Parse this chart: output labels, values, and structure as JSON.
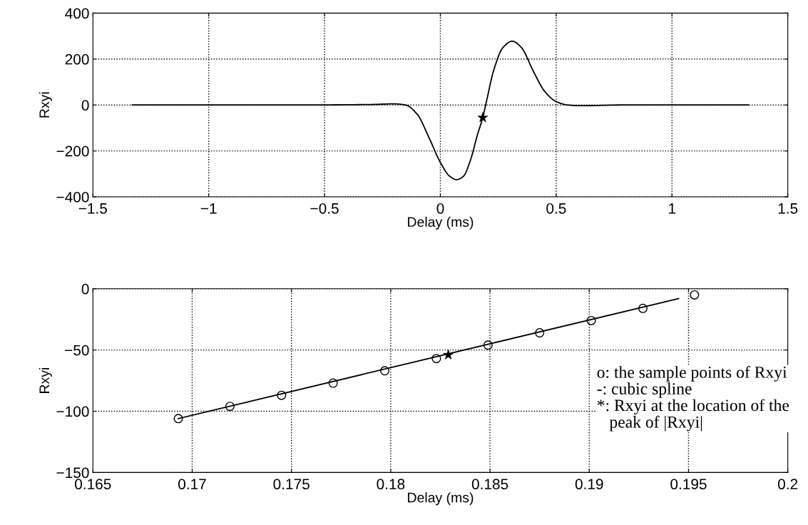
{
  "chart_data": [
    {
      "type": "line",
      "xlabel": "Delay (ms)",
      "ylabel": "Rxyi",
      "xlim": [
        -1.5,
        1.5
      ],
      "ylim": [
        -400,
        400
      ],
      "xticks": [
        -1.5,
        -1,
        -0.5,
        0,
        0.5,
        1,
        1.5
      ],
      "yticks": [
        -400,
        -200,
        0,
        200,
        400
      ],
      "grid": true,
      "series": [
        {
          "color": "#000000",
          "marker": "none",
          "x": [
            -1.33,
            -0.6,
            -0.3,
            -0.2,
            -0.15,
            -0.1,
            -0.05,
            0,
            0.04,
            0.07,
            0.1,
            0.13,
            0.16,
            0.183,
            0.2,
            0.23,
            0.27,
            0.31,
            0.35,
            0.4,
            0.45,
            0.5,
            0.55,
            0.6,
            0.8,
            1.33
          ],
          "values": [
            0,
            0,
            2,
            5,
            0,
            -40,
            -140,
            -250,
            -310,
            -325,
            -310,
            -240,
            -130,
            -55,
            20,
            150,
            250,
            278,
            250,
            150,
            60,
            15,
            0,
            -3,
            0,
            0
          ]
        },
        {
          "type": "scatter",
          "color": "#000000",
          "marker": "star",
          "x": [
            0.183
          ],
          "values": [
            -55
          ]
        }
      ]
    },
    {
      "type": "line",
      "xlabel": "Delay (ms)",
      "ylabel": "Rxyi",
      "xlim": [
        0.165,
        0.2
      ],
      "ylim": [
        -150,
        0
      ],
      "xticks": [
        0.165,
        0.17,
        0.175,
        0.18,
        0.185,
        0.19,
        0.195,
        0.2
      ],
      "yticks": [
        -150,
        -100,
        -50,
        0
      ],
      "grid": true,
      "series": [
        {
          "color": "#000000",
          "marker": "none",
          "x": [
            0.1693,
            0.1945
          ],
          "values": [
            -106,
            -8
          ]
        },
        {
          "type": "scatter",
          "color": "#000000",
          "marker": "circle",
          "x": [
            0.1693,
            0.1719,
            0.1745,
            0.1771,
            0.1797,
            0.1823,
            0.1849,
            0.1875,
            0.1901,
            0.1927,
            0.1953
          ],
          "values": [
            -106,
            -96,
            -87,
            -77,
            -67,
            -57,
            -46,
            -36,
            -26,
            -16,
            -5
          ]
        },
        {
          "type": "scatter",
          "color": "#000000",
          "marker": "star",
          "x": [
            0.1829
          ],
          "values": [
            -54
          ]
        }
      ],
      "annotations": [
        "o: the sample points of Rxyi\n-: cubic spline\n*: Rxyi at the location of the\n   peak of |Rxyi|"
      ]
    }
  ]
}
